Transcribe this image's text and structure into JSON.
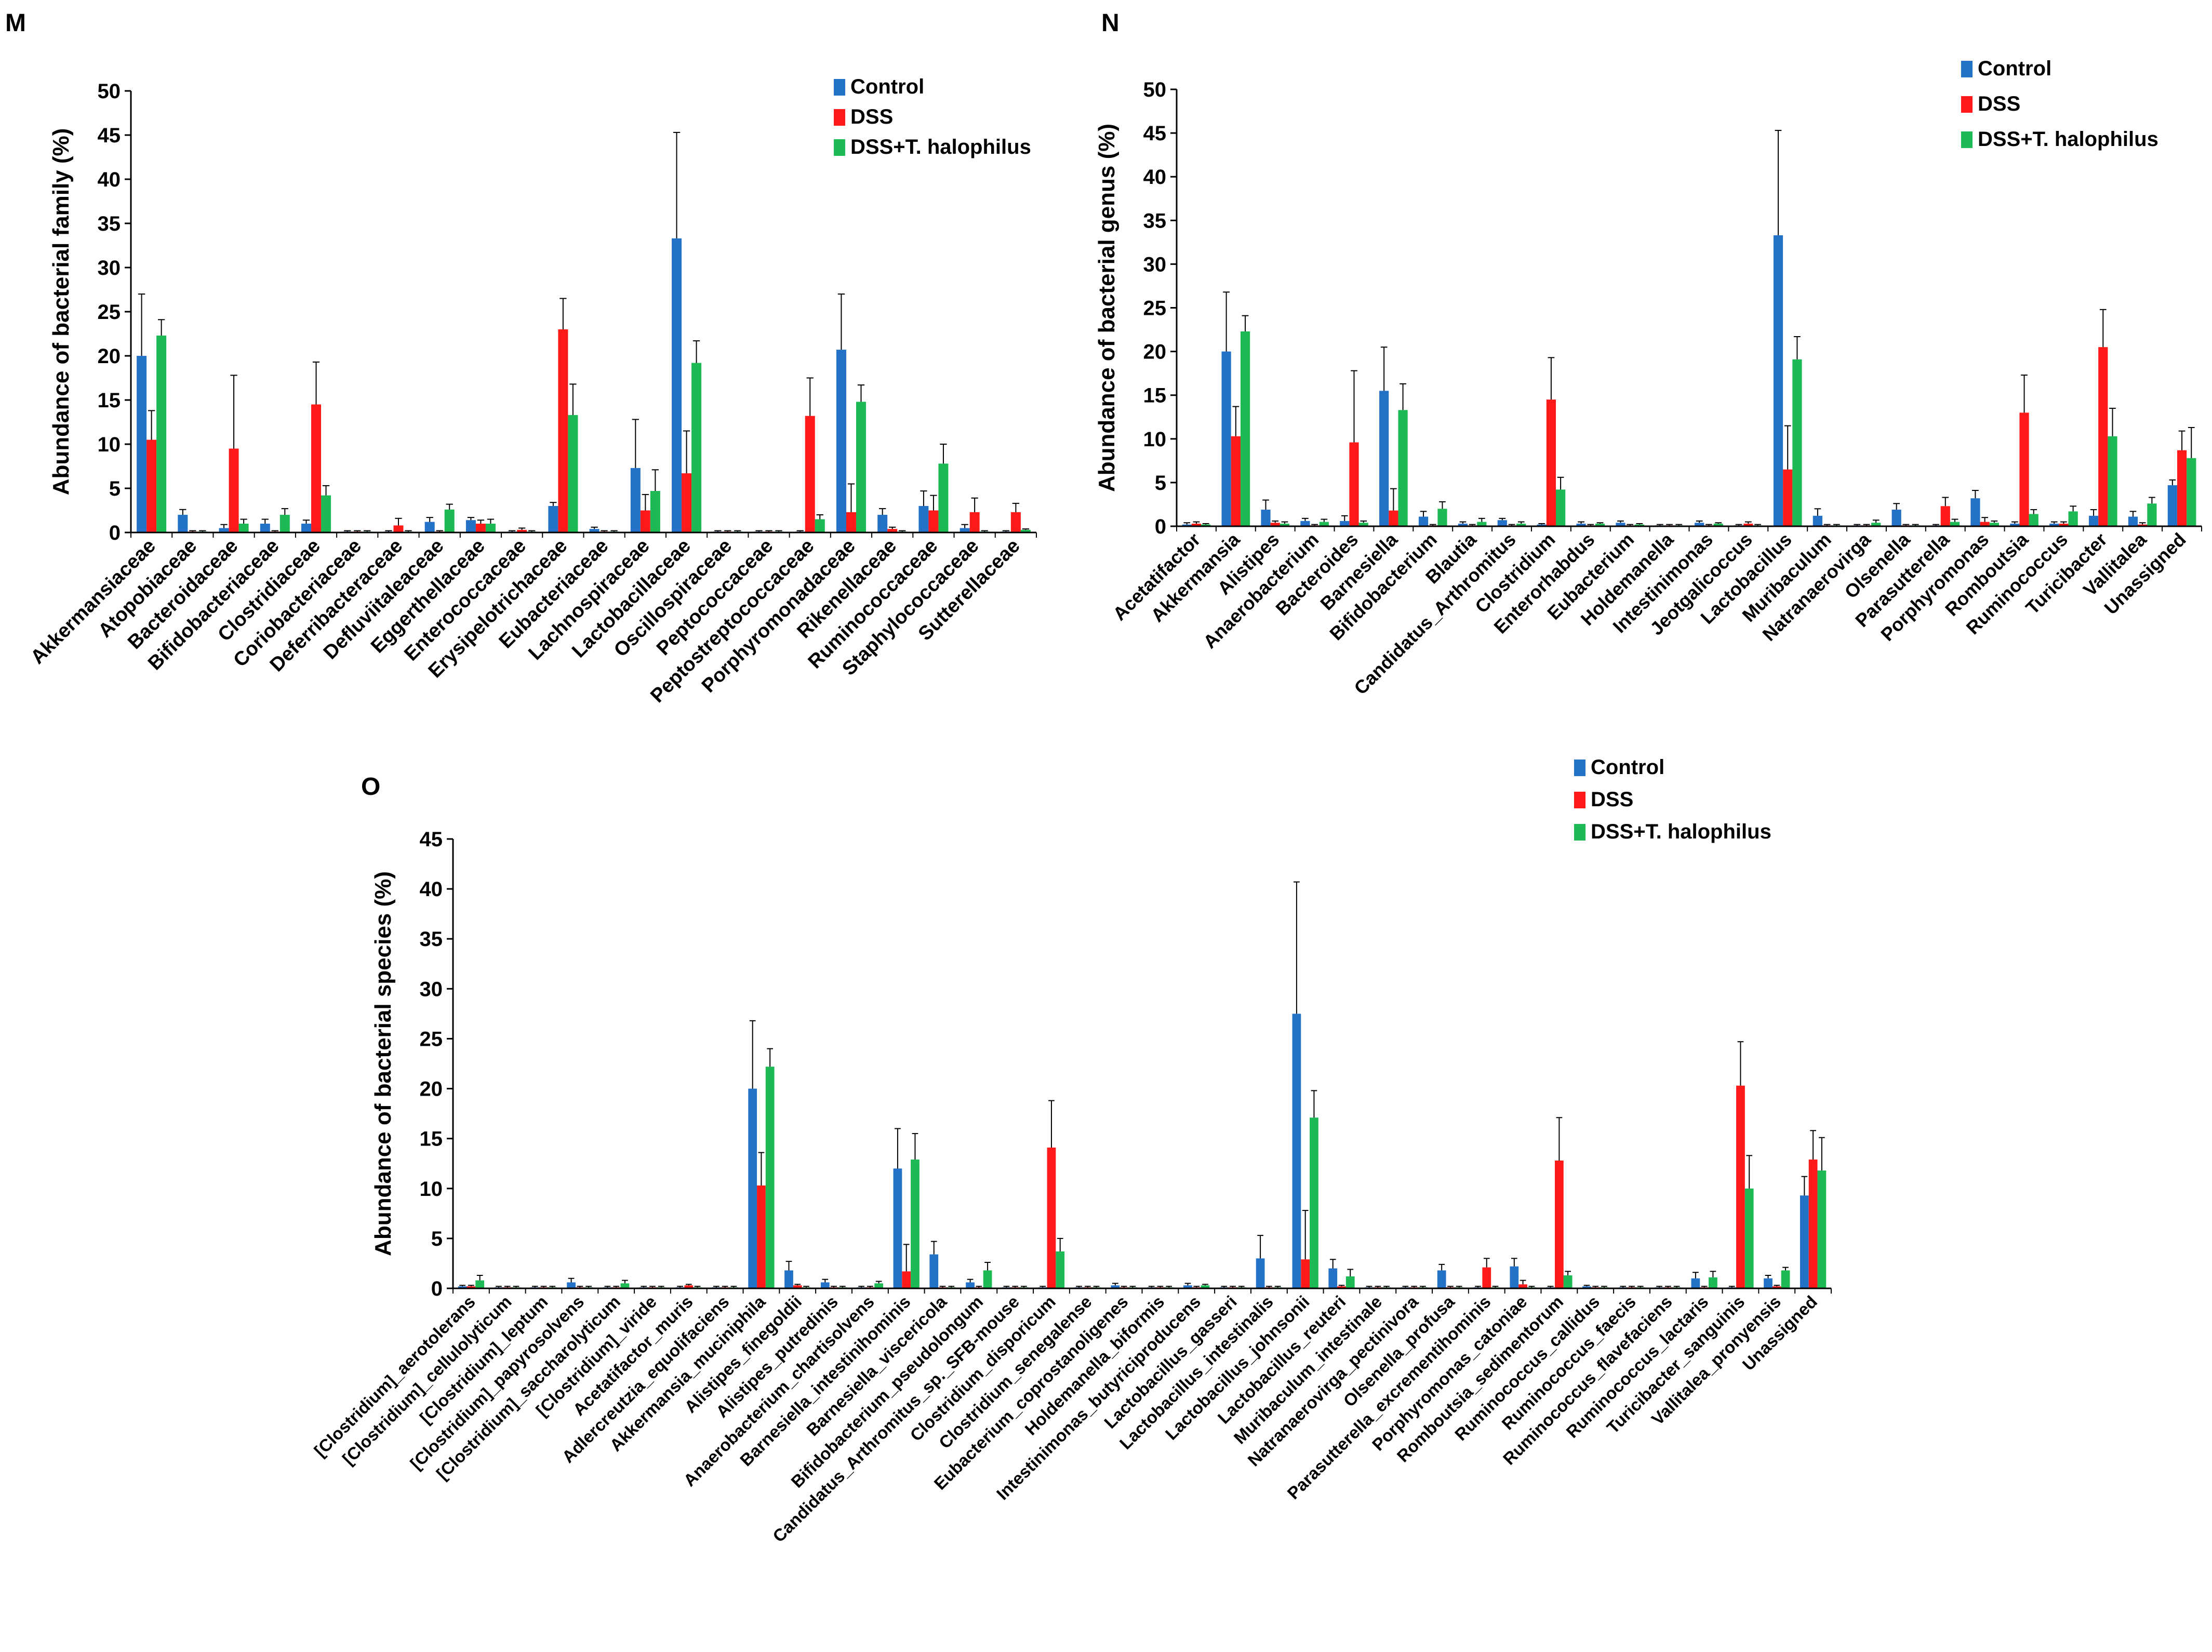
{
  "figure": {
    "panels": [
      "M",
      "N",
      "O"
    ]
  },
  "colors": {
    "control": "#2472C8",
    "dss": "#FF1A1A",
    "treat": "#1DB954"
  },
  "chart_data": [
    {
      "panel": "M",
      "type": "bar",
      "title": "",
      "xlabel": "",
      "ylabel": "Abundance of bacterial family (%)",
      "ylim": [
        0,
        50
      ],
      "yticks": [
        0,
        5,
        10,
        15,
        20,
        25,
        30,
        35,
        40,
        45,
        50
      ],
      "legend": [
        "Control",
        "DSS",
        "DSS+T. halophilus"
      ],
      "legend_position": "top-right",
      "categories": [
        "Akkermansiaceae",
        "Atopobiaceae",
        "Bacteroidaceae",
        "Bifidobacteriaceae",
        "Clostridiaceae",
        "Coriobacteriaceae",
        "Deferribacteraceae",
        "Defluviitaleaceae",
        "Eggerthellaceae",
        "Enterococcaceae",
        "Erysipelotrichaceae",
        "Eubacteriaceae",
        "Lachnospiraceae",
        "Lactobacillaceae",
        "Oscillospiraceae",
        "Peptococcaceae",
        "Peptostreptococcaceae",
        "Porphyromonadaceae",
        "Rikenellaceae",
        "Ruminococcaceae",
        "Staphylococcaceae",
        "Sutterellaceae"
      ],
      "series": [
        {
          "name": "Control",
          "color": "#2472C8",
          "values": [
            20.0,
            2.0,
            0.5,
            1.0,
            1.0,
            0.1,
            0.1,
            1.2,
            1.4,
            0.1,
            3.0,
            0.4,
            7.3,
            33.3,
            0.1,
            0.1,
            0.1,
            20.7,
            2.0,
            3.0,
            0.5,
            0.1
          ],
          "errors": [
            7.0,
            0.6,
            0.4,
            0.5,
            0.4,
            0.1,
            0.1,
            0.5,
            0.3,
            0.1,
            0.4,
            0.2,
            5.5,
            12.0,
            0.1,
            0.1,
            0.1,
            6.3,
            0.7,
            1.7,
            0.4,
            0.1
          ]
        },
        {
          "name": "DSS",
          "color": "#FF1A1A",
          "values": [
            10.5,
            0.1,
            9.5,
            0.1,
            14.5,
            0.1,
            0.8,
            0.1,
            1.0,
            0.3,
            23.0,
            0.1,
            2.5,
            6.7,
            0.1,
            0.1,
            13.2,
            2.3,
            0.4,
            2.5,
            2.3,
            2.3
          ],
          "errors": [
            3.3,
            0.1,
            8.3,
            0.1,
            4.8,
            0.1,
            0.8,
            0.1,
            0.4,
            0.2,
            3.5,
            0.1,
            1.8,
            4.8,
            0.1,
            0.1,
            4.3,
            3.2,
            0.2,
            1.7,
            1.6,
            1.0
          ]
        },
        {
          "name": "DSS+T. halophilus",
          "color": "#1DB954",
          "values": [
            22.3,
            0.1,
            1.0,
            2.0,
            4.2,
            0.1,
            0.1,
            2.6,
            1.0,
            0.1,
            13.3,
            0.1,
            4.7,
            19.2,
            0.1,
            0.1,
            1.5,
            14.8,
            0.1,
            7.8,
            0.1,
            0.3
          ],
          "errors": [
            1.8,
            0.1,
            0.5,
            0.7,
            1.1,
            0.1,
            0.1,
            0.6,
            0.5,
            0.1,
            3.5,
            0.1,
            2.4,
            2.5,
            0.1,
            0.1,
            0.5,
            1.9,
            0.1,
            2.2,
            0.1,
            0.1
          ]
        }
      ]
    },
    {
      "panel": "N",
      "type": "bar",
      "title": "",
      "xlabel": "",
      "ylabel": "Abundance of bacterial genus (%)",
      "ylim": [
        0,
        50
      ],
      "yticks": [
        0,
        5,
        10,
        15,
        20,
        25,
        30,
        35,
        40,
        45,
        50
      ],
      "legend": [
        "Control",
        "DSS",
        "DSS+T. halophilus"
      ],
      "legend_position": "top-right",
      "categories": [
        "Acetatifactor",
        "Akkermansia",
        "Alistipes",
        "Anaerobacterium",
        "Bacteroides",
        "Barnesiella",
        "Bifidobacterium",
        "Blautia",
        "Candidatus_Arthromitus",
        "Clostridium",
        "Enterorhabdus",
        "Eubacterium",
        "Holdemanella",
        "Intestinimonas",
        "Jeotgalicoccus",
        "Lactobacillus",
        "Muribaculum",
        "Natranaerovirga",
        "Olsenella",
        "Parasutterella",
        "Porphyromonas",
        "Romboutsia",
        "Ruminococcus",
        "Turicibacter",
        "Vallitalea",
        "Unassigned"
      ],
      "series": [
        {
          "name": "Control",
          "color": "#2472C8",
          "values": [
            0.2,
            20.0,
            1.9,
            0.6,
            0.6,
            15.5,
            1.1,
            0.3,
            0.7,
            0.2,
            0.3,
            0.4,
            0.1,
            0.4,
            0.1,
            33.3,
            1.2,
            0.1,
            1.9,
            0.1,
            3.2,
            0.3,
            0.3,
            1.2,
            1.1,
            4.7
          ],
          "errors": [
            0.2,
            6.8,
            1.1,
            0.3,
            0.6,
            5.0,
            0.6,
            0.2,
            0.2,
            0.1,
            0.2,
            0.2,
            0.1,
            0.2,
            0.1,
            12.0,
            0.8,
            0.1,
            0.7,
            0.1,
            0.9,
            0.2,
            0.2,
            0.7,
            0.6,
            0.6
          ]
        },
        {
          "name": "DSS",
          "color": "#FF1A1A",
          "values": [
            0.3,
            10.3,
            0.4,
            0.1,
            9.6,
            1.8,
            0.1,
            0.1,
            0.1,
            14.5,
            0.1,
            0.1,
            0.1,
            0.1,
            0.3,
            6.5,
            0.1,
            0.1,
            0.1,
            2.3,
            0.5,
            13.0,
            0.3,
            20.5,
            0.2,
            8.7
          ],
          "errors": [
            0.2,
            3.4,
            0.2,
            0.1,
            8.2,
            2.5,
            0.1,
            0.1,
            0.1,
            4.8,
            0.1,
            0.1,
            0.1,
            0.1,
            0.2,
            5.0,
            0.1,
            0.1,
            0.1,
            1.0,
            0.5,
            4.3,
            0.2,
            4.3,
            0.2,
            2.2
          ]
        },
        {
          "name": "DSS+T. halophilus",
          "color": "#1DB954",
          "values": [
            0.2,
            22.3,
            0.3,
            0.5,
            0.4,
            13.3,
            2.0,
            0.5,
            0.3,
            4.2,
            0.3,
            0.2,
            0.1,
            0.3,
            0.1,
            19.1,
            0.1,
            0.4,
            0.1,
            0.5,
            0.4,
            1.4,
            1.7,
            10.3,
            2.6,
            7.8
          ],
          "errors": [
            0.1,
            1.8,
            0.2,
            0.3,
            0.2,
            3.0,
            0.8,
            0.4,
            0.2,
            1.4,
            0.1,
            0.1,
            0.1,
            0.1,
            0.1,
            2.6,
            0.1,
            0.3,
            0.1,
            0.3,
            0.2,
            0.5,
            0.6,
            3.2,
            0.7,
            3.5
          ]
        }
      ]
    },
    {
      "panel": "O",
      "type": "bar",
      "title": "",
      "xlabel": "",
      "ylabel": "Abundance of bacterial species (%)",
      "ylim": [
        0,
        45
      ],
      "yticks": [
        0,
        5,
        10,
        15,
        20,
        25,
        30,
        35,
        40,
        45
      ],
      "legend": [
        "Control",
        "DSS",
        "DSS+T. halophilus"
      ],
      "legend_position": "top-center",
      "categories": [
        "[Clostridium]_aerotolerans",
        "[Clostridium]_cellulolyticum",
        "[Clostridium]_leptum",
        "[Clostridium]_papyrosolvens",
        "[Clostridium]_saccharolyticum",
        "[Clostridium]_viride",
        "Acetatifactor_muris",
        "Adlercreutzia_equolifaciens",
        "Akkermansia_muciniphila",
        "Alistipes_finegoldii",
        "Alistipes_putredinis",
        "Anaerobacterium_chartisolvens",
        "Barnesiella_intestinihominis",
        "Barnesiella_viscericola",
        "Bifidobacterium_pseudolongum",
        "Candidatus_Arthromitus_sp._SFB-mouse",
        "Clostridium_disporicum",
        "Clostridium_senegalense",
        "Eubacterium_coprostanoligenes",
        "Holdemanella_biformis",
        "Intestinimonas_butyriciproducens",
        "Lactobacillus_gasseri",
        "Lactobacillus_intestinalis",
        "Lactobacillus_johnsonii",
        "Lactobacillus_reuteri",
        "Muribaculum_intestinale",
        "Natranaerovirga_pectinivora",
        "Olsenella_profusa",
        "Parasutterella_excrementihominis",
        "Porphyromonas_catoniae",
        "Romboutsia_sedimentorum",
        "Ruminococcus_callidus",
        "Ruminococcus_faecis",
        "Ruminococcus_flavefaciens",
        "Ruminococcus_lactaris",
        "Turicibacter_sanguinis",
        "Vallitalea_pronyensis",
        "Unassigned"
      ],
      "series": [
        {
          "name": "Control",
          "color": "#2472C8",
          "values": [
            0.2,
            0.1,
            0.1,
            0.6,
            0.1,
            0.1,
            0.1,
            0.1,
            20.0,
            1.8,
            0.6,
            0.1,
            12.0,
            3.4,
            0.6,
            0.1,
            0.1,
            0.1,
            0.3,
            0.1,
            0.3,
            0.1,
            3.0,
            27.5,
            2.0,
            0.1,
            0.1,
            1.8,
            0.1,
            2.2,
            0.1,
            0.2,
            0.1,
            0.1,
            1.0,
            0.1,
            1.0,
            9.3
          ],
          "errors": [
            0.1,
            0.1,
            0.1,
            0.4,
            0.1,
            0.1,
            0.1,
            0.1,
            6.8,
            0.9,
            0.3,
            0.1,
            4.0,
            1.3,
            0.3,
            0.1,
            0.1,
            0.1,
            0.2,
            0.1,
            0.2,
            0.1,
            2.3,
            13.2,
            0.9,
            0.1,
            0.1,
            0.6,
            0.1,
            0.8,
            0.1,
            0.1,
            0.1,
            0.1,
            0.6,
            0.1,
            0.3,
            1.9
          ]
        },
        {
          "name": "DSS",
          "color": "#FF1A1A",
          "values": [
            0.2,
            0.1,
            0.1,
            0.1,
            0.1,
            0.1,
            0.3,
            0.1,
            10.3,
            0.3,
            0.1,
            0.1,
            1.7,
            0.1,
            0.1,
            0.1,
            14.1,
            0.1,
            0.1,
            0.1,
            0.1,
            0.1,
            0.1,
            2.9,
            0.2,
            0.1,
            0.1,
            0.1,
            2.1,
            0.4,
            12.8,
            0.1,
            0.1,
            0.1,
            0.1,
            20.3,
            0.2,
            12.9
          ],
          "errors": [
            0.1,
            0.1,
            0.1,
            0.1,
            0.1,
            0.1,
            0.1,
            0.1,
            3.3,
            0.1,
            0.1,
            0.1,
            2.7,
            0.1,
            0.1,
            0.1,
            4.7,
            0.1,
            0.1,
            0.1,
            0.1,
            0.1,
            0.1,
            4.9,
            0.1,
            0.1,
            0.1,
            0.1,
            0.9,
            0.4,
            4.3,
            0.1,
            0.1,
            0.1,
            0.1,
            4.4,
            0.1,
            2.9
          ]
        },
        {
          "name": "DSS+T. halophilus",
          "color": "#1DB954",
          "values": [
            0.8,
            0.1,
            0.1,
            0.1,
            0.5,
            0.1,
            0.1,
            0.1,
            22.2,
            0.1,
            0.1,
            0.5,
            12.9,
            0.1,
            1.8,
            0.1,
            3.7,
            0.1,
            0.1,
            0.1,
            0.3,
            0.1,
            0.1,
            17.1,
            1.2,
            0.1,
            0.1,
            0.1,
            0.1,
            0.1,
            1.3,
            0.1,
            0.1,
            0.1,
            1.1,
            10.0,
            1.8,
            11.8
          ],
          "errors": [
            0.5,
            0.1,
            0.1,
            0.1,
            0.3,
            0.1,
            0.1,
            0.1,
            1.8,
            0.1,
            0.1,
            0.2,
            2.6,
            0.1,
            0.8,
            0.1,
            1.3,
            0.1,
            0.1,
            0.1,
            0.1,
            0.1,
            0.1,
            2.7,
            0.7,
            0.1,
            0.1,
            0.1,
            0.1,
            0.1,
            0.4,
            0.1,
            0.1,
            0.1,
            0.6,
            3.3,
            0.3,
            3.3
          ]
        }
      ]
    }
  ]
}
